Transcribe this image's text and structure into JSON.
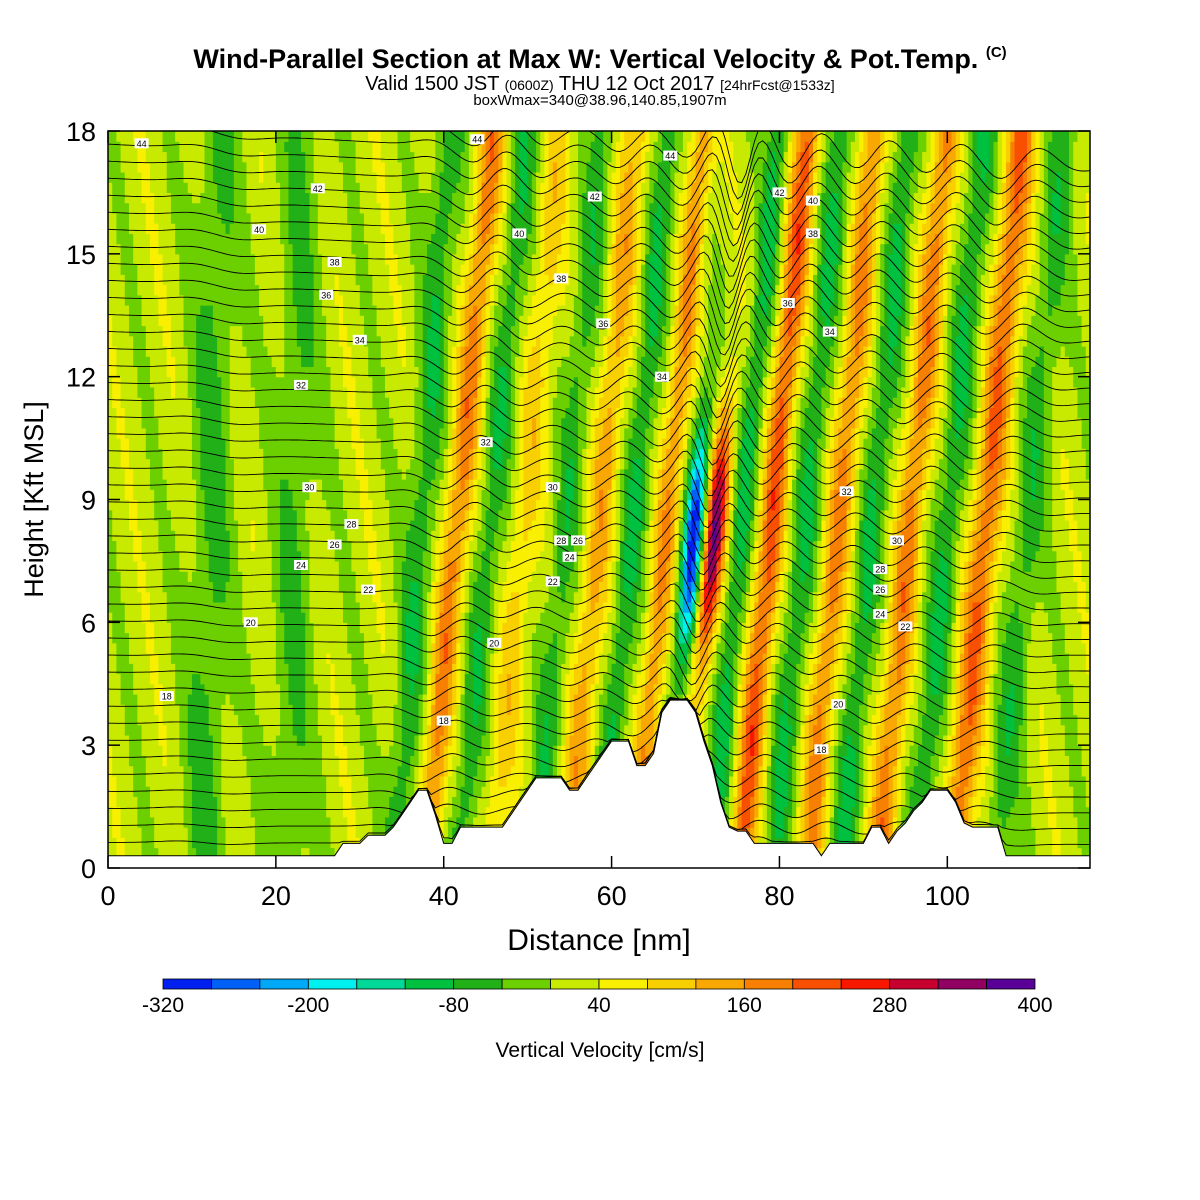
{
  "title": {
    "main": "Wind-Parallel Section at Max W: Vertical Velocity & Pot.Temp.",
    "copyright": "(C)",
    "valid_prefix": "Valid 1500 JST",
    "valid_utc": "(0600Z)",
    "valid_date": "THU 12 Oct 2017",
    "forecast": "[24hrFcst@1533z]",
    "boxinfo": "boxWmax=340@38.96,140.85,1907m"
  },
  "chart_data": {
    "type": "heatmap",
    "xlabel": "Distance [nm]",
    "ylabel": "Height [Kft MSL]",
    "xlim": [
      0,
      117
    ],
    "ylim": [
      0,
      18
    ],
    "xticks": [
      0,
      20,
      40,
      60,
      80,
      100
    ],
    "yticks": [
      0,
      3,
      6,
      9,
      12,
      15,
      18
    ],
    "grid": false,
    "colorbar": {
      "label": "Vertical Velocity [cm/s]",
      "tick_labels": [
        "-320",
        "-200",
        "-80",
        "40",
        "160",
        "280",
        "400"
      ],
      "levels": [
        -320,
        -280,
        -240,
        -200,
        -160,
        -120,
        -80,
        -40,
        0,
        40,
        80,
        120,
        160,
        200,
        240,
        280,
        320,
        360,
        400
      ],
      "colors": [
        "#0020f0",
        "#0060f8",
        "#00a8f8",
        "#00f0f0",
        "#00d898",
        "#00c040",
        "#22b018",
        "#6cd000",
        "#c8ea00",
        "#f8f000",
        "#f8d000",
        "#f8a800",
        "#f88000",
        "#f85000",
        "#f81800",
        "#c80030",
        "#900060",
        "#580098"
      ]
    },
    "terrain_kft": [
      [
        0,
        0.3
      ],
      [
        27,
        0.3
      ],
      [
        28,
        0.6
      ],
      [
        30,
        0.6
      ],
      [
        31,
        0.8
      ],
      [
        33,
        0.8
      ],
      [
        34,
        1.0
      ],
      [
        35,
        1.3
      ],
      [
        36,
        1.6
      ],
      [
        37,
        1.9
      ],
      [
        38,
        1.9
      ],
      [
        39,
        1.3
      ],
      [
        40,
        0.6
      ],
      [
        41,
        0.6
      ],
      [
        42,
        1.0
      ],
      [
        47,
        1.0
      ],
      [
        48,
        1.3
      ],
      [
        49,
        1.6
      ],
      [
        50,
        1.9
      ],
      [
        51,
        2.2
      ],
      [
        54,
        2.2
      ],
      [
        55,
        1.9
      ],
      [
        56,
        1.9
      ],
      [
        57,
        2.2
      ],
      [
        58,
        2.5
      ],
      [
        59,
        2.8
      ],
      [
        60,
        3.1
      ],
      [
        62,
        3.1
      ],
      [
        63,
        2.5
      ],
      [
        64,
        2.5
      ],
      [
        65,
        2.8
      ],
      [
        66,
        3.8
      ],
      [
        67,
        4.1
      ],
      [
        69,
        4.1
      ],
      [
        70,
        3.8
      ],
      [
        71,
        3.1
      ],
      [
        72,
        2.5
      ],
      [
        73,
        1.6
      ],
      [
        74,
        1.0
      ],
      [
        75,
        0.9
      ],
      [
        76,
        0.9
      ],
      [
        77,
        0.6
      ],
      [
        80,
        0.6
      ],
      [
        84,
        0.6
      ],
      [
        85,
        0.3
      ],
      [
        86,
        0.6
      ],
      [
        90,
        0.6
      ],
      [
        91,
        1.0
      ],
      [
        92,
        1.0
      ],
      [
        93,
        0.6
      ],
      [
        94,
        0.9
      ],
      [
        95,
        1.1
      ],
      [
        96,
        1.4
      ],
      [
        97,
        1.6
      ],
      [
        98,
        1.9
      ],
      [
        100,
        1.9
      ],
      [
        101,
        1.6
      ],
      [
        102,
        1.1
      ],
      [
        103,
        1.0
      ],
      [
        106,
        1.0
      ],
      [
        107,
        0.3
      ],
      [
        110,
        0.3
      ],
      [
        117,
        0.3
      ]
    ],
    "vertical_velocity_features": [
      {
        "x": 36.5,
        "tilt": 0.35,
        "width": 1.8,
        "amp": -90
      },
      {
        "x": 40.5,
        "tilt": 0.45,
        "width": 1.6,
        "amp": 160
      },
      {
        "x": 44.5,
        "tilt": 0.45,
        "width": 1.6,
        "amp": -90
      },
      {
        "x": 48.5,
        "tilt": 0.45,
        "width": 1.6,
        "amp": 80
      },
      {
        "x": 53.5,
        "tilt": 0.45,
        "width": 1.6,
        "amp": -80
      },
      {
        "x": 57.5,
        "tilt": 0.45,
        "width": 1.6,
        "amp": 120
      },
      {
        "x": 61.5,
        "tilt": 0.45,
        "width": 1.5,
        "amp": -100
      },
      {
        "x": 65.5,
        "tilt": 0.45,
        "width": 1.4,
        "amp": 140
      },
      {
        "x": 68.8,
        "tilt": 0.45,
        "width": 1.2,
        "amp": -320
      },
      {
        "x": 71.3,
        "tilt": 0.45,
        "width": 1.2,
        "amp": 340
      },
      {
        "x": 74.5,
        "tilt": 0.45,
        "width": 1.3,
        "amp": -110
      },
      {
        "x": 78.0,
        "tilt": 0.45,
        "width": 1.5,
        "amp": 200
      },
      {
        "x": 82.0,
        "tilt": 0.45,
        "width": 1.6,
        "amp": -100
      },
      {
        "x": 86.0,
        "tilt": 0.45,
        "width": 1.6,
        "amp": 150
      },
      {
        "x": 90.0,
        "tilt": 0.45,
        "width": 1.6,
        "amp": -100
      },
      {
        "x": 94.5,
        "tilt": 0.45,
        "width": 1.6,
        "amp": 160
      },
      {
        "x": 99.0,
        "tilt": 0.45,
        "width": 1.7,
        "amp": -100
      },
      {
        "x": 103.5,
        "tilt": 0.45,
        "width": 1.8,
        "amp": 180
      },
      {
        "x": 108.5,
        "tilt": 0.45,
        "width": 1.8,
        "amp": -80
      },
      {
        "x": 12.0,
        "tilt": 0.1,
        "width": 2.5,
        "amp": -70
      },
      {
        "x": 22.0,
        "tilt": 0.1,
        "width": 2.5,
        "amp": -60
      }
    ],
    "theta_contour_labels": [
      {
        "x": 4,
        "y": 17.7,
        "text": "44"
      },
      {
        "x": 44,
        "y": 17.8,
        "text": "44"
      },
      {
        "x": 67,
        "y": 17.4,
        "text": "44"
      },
      {
        "x": 25,
        "y": 16.6,
        "text": "42"
      },
      {
        "x": 58,
        "y": 16.4,
        "text": "42"
      },
      {
        "x": 80,
        "y": 16.5,
        "text": "42"
      },
      {
        "x": 18,
        "y": 15.6,
        "text": "40"
      },
      {
        "x": 49,
        "y": 15.5,
        "text": "40"
      },
      {
        "x": 84,
        "y": 16.3,
        "text": "40"
      },
      {
        "x": 27,
        "y": 14.8,
        "text": "38"
      },
      {
        "x": 54,
        "y": 14.4,
        "text": "38"
      },
      {
        "x": 84,
        "y": 15.5,
        "text": "38"
      },
      {
        "x": 26,
        "y": 14.0,
        "text": "36"
      },
      {
        "x": 59,
        "y": 13.3,
        "text": "36"
      },
      {
        "x": 81,
        "y": 13.8,
        "text": "36"
      },
      {
        "x": 30,
        "y": 12.9,
        "text": "34"
      },
      {
        "x": 66,
        "y": 12.0,
        "text": "34"
      },
      {
        "x": 86,
        "y": 13.1,
        "text": "34"
      },
      {
        "x": 23,
        "y": 11.8,
        "text": "32"
      },
      {
        "x": 45,
        "y": 10.4,
        "text": "32"
      },
      {
        "x": 88,
        "y": 9.2,
        "text": "32"
      },
      {
        "x": 24,
        "y": 9.3,
        "text": "30"
      },
      {
        "x": 53,
        "y": 9.3,
        "text": "30"
      },
      {
        "x": 94,
        "y": 8.0,
        "text": "30"
      },
      {
        "x": 29,
        "y": 8.4,
        "text": "28"
      },
      {
        "x": 54,
        "y": 8.0,
        "text": "28"
      },
      {
        "x": 92,
        "y": 7.3,
        "text": "28"
      },
      {
        "x": 27,
        "y": 7.9,
        "text": "26"
      },
      {
        "x": 56,
        "y": 8.0,
        "text": "26"
      },
      {
        "x": 92,
        "y": 6.8,
        "text": "26"
      },
      {
        "x": 23,
        "y": 7.4,
        "text": "24"
      },
      {
        "x": 55,
        "y": 7.6,
        "text": "24"
      },
      {
        "x": 92,
        "y": 6.2,
        "text": "24"
      },
      {
        "x": 31,
        "y": 6.8,
        "text": "22"
      },
      {
        "x": 53,
        "y": 7.0,
        "text": "22"
      },
      {
        "x": 95,
        "y": 5.9,
        "text": "22"
      },
      {
        "x": 17,
        "y": 6.0,
        "text": "20"
      },
      {
        "x": 46,
        "y": 5.5,
        "text": "20"
      },
      {
        "x": 87,
        "y": 4.0,
        "text": "20"
      },
      {
        "x": 7,
        "y": 4.2,
        "text": "18"
      },
      {
        "x": 40,
        "y": 3.6,
        "text": "18"
      },
      {
        "x": 85,
        "y": 2.9,
        "text": "18"
      }
    ]
  }
}
